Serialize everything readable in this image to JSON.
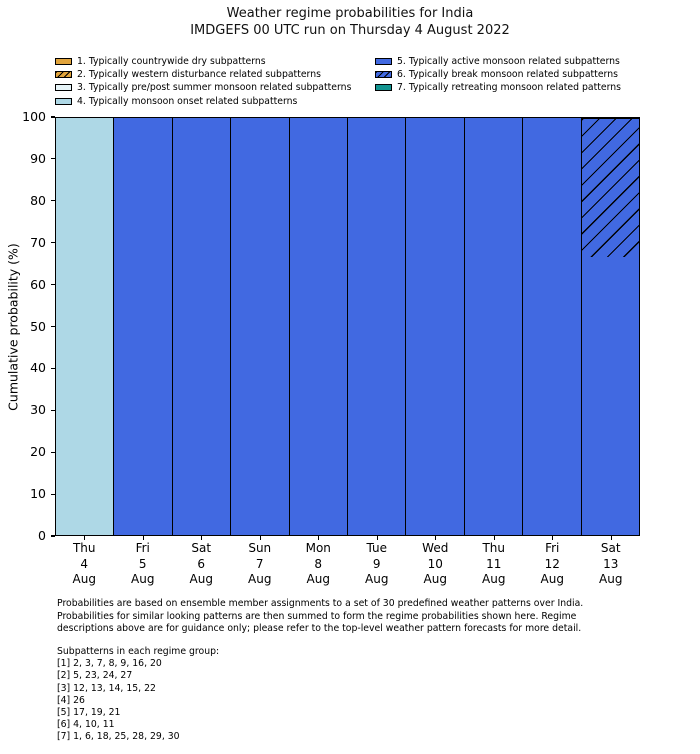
{
  "title": {
    "line1": "Weather regime probabilities for India",
    "line2": "IMDGEFS 00 UTC run on Thursday 4 August 2022"
  },
  "legend": {
    "items": [
      {
        "id": 1,
        "label": "1. Typically countrywide dry subpatterns",
        "color": "#e1a43c",
        "hatch": false
      },
      {
        "id": 2,
        "label": "2. Typically western disturbance related subpatterns",
        "color": "#e1a43c",
        "hatch": true
      },
      {
        "id": 3,
        "label": "3. Typically pre/post summer monsoon related subpatterns",
        "color": "#e6f4f8",
        "hatch": false
      },
      {
        "id": 4,
        "label": "4. Typically monsoon onset related subpatterns",
        "color": "#aed8e6",
        "hatch": false
      },
      {
        "id": 5,
        "label": "5. Typically active monsoon related subpatterns",
        "color": "#4169e1",
        "hatch": false
      },
      {
        "id": 6,
        "label": "6. Typically break monsoon related subpatterns",
        "color": "#4169e1",
        "hatch": true
      },
      {
        "id": 7,
        "label": "7. Typically retreating monsoon related patterns",
        "color": "#129490",
        "hatch": false
      }
    ]
  },
  "chart_data": {
    "type": "bar",
    "stacked": true,
    "title": "Weather regime probabilities for India",
    "subtitle": "IMDGEFS 00 UTC run on Thursday 4 August 2022",
    "ylabel": "Cumulative probability (%)",
    "xlabel": "",
    "ylim": [
      0,
      100
    ],
    "yticks": [
      0,
      10,
      20,
      30,
      40,
      50,
      60,
      70,
      80,
      90,
      100
    ],
    "grid": false,
    "legend_position": "above-plot, two columns",
    "categories": [
      [
        "Thu",
        "4",
        "Aug"
      ],
      [
        "Fri",
        "5",
        "Aug"
      ],
      [
        "Sat",
        "6",
        "Aug"
      ],
      [
        "Sun",
        "7",
        "Aug"
      ],
      [
        "Mon",
        "8",
        "Aug"
      ],
      [
        "Tue",
        "9",
        "Aug"
      ],
      [
        "Wed",
        "10",
        "Aug"
      ],
      [
        "Thu",
        "11",
        "Aug"
      ],
      [
        "Fri",
        "12",
        "Aug"
      ],
      [
        "Sat",
        "13",
        "Aug"
      ]
    ],
    "bars": [
      {
        "date": "Thu 4 Aug",
        "segments": [
          {
            "regime": 4,
            "value": 100
          }
        ]
      },
      {
        "date": "Fri 5 Aug",
        "segments": [
          {
            "regime": 5,
            "value": 100
          }
        ]
      },
      {
        "date": "Sat 6 Aug",
        "segments": [
          {
            "regime": 5,
            "value": 100
          }
        ]
      },
      {
        "date": "Sun 7 Aug",
        "segments": [
          {
            "regime": 5,
            "value": 100
          }
        ]
      },
      {
        "date": "Mon 8 Aug",
        "segments": [
          {
            "regime": 5,
            "value": 100
          }
        ]
      },
      {
        "date": "Tue 9 Aug",
        "segments": [
          {
            "regime": 5,
            "value": 100
          }
        ]
      },
      {
        "date": "Wed 10 Aug",
        "segments": [
          {
            "regime": 5,
            "value": 100
          }
        ]
      },
      {
        "date": "Thu 11 Aug",
        "segments": [
          {
            "regime": 5,
            "value": 100
          }
        ]
      },
      {
        "date": "Fri 12 Aug",
        "segments": [
          {
            "regime": 5,
            "value": 100
          }
        ]
      },
      {
        "date": "Sat 13 Aug",
        "segments": [
          {
            "regime": 5,
            "value": 66.7
          },
          {
            "regime": 6,
            "value": 33.3
          }
        ]
      }
    ]
  },
  "footer": {
    "lines": [
      "Probabilities are based on ensemble member assignments to a set of 30 predefined weather patterns over India.",
      "Probabilities for similar looking patterns are then summed to form the regime probabilities shown here. Regime",
      "descriptions above are for guidance only; please refer to the top-level weather pattern forecasts for more detail."
    ]
  },
  "subpatterns": {
    "heading": "Subpatterns in each regime group:",
    "lines": [
      "[1] 2, 3, 7, 8, 9, 16, 20",
      "[2] 5, 23, 24, 27",
      "[3] 12, 13, 14, 15, 22",
      "[4] 26",
      "[5] 17, 19, 21",
      "[6] 4, 10, 11",
      "[7] 1, 6, 18, 25, 28, 29, 30"
    ]
  }
}
